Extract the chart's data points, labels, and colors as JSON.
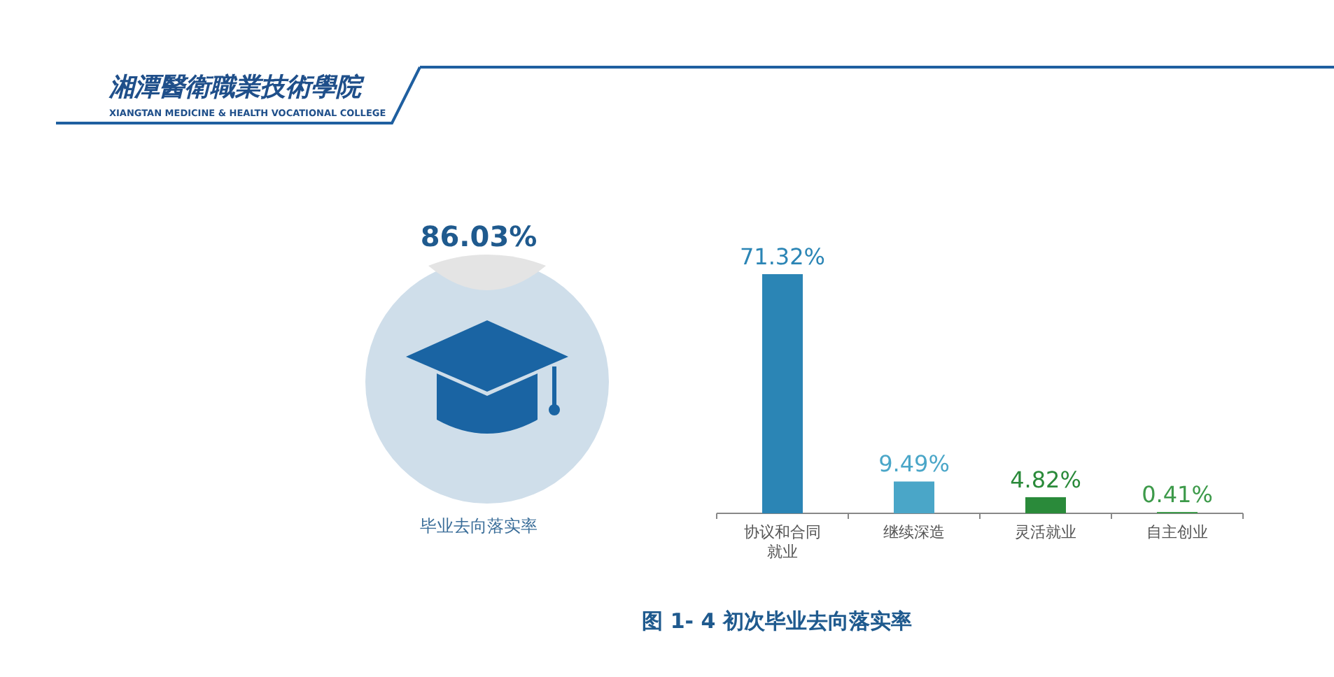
{
  "chart_data": [
    {
      "type": "other",
      "annotations": [
        "湘潭醫衛職業技術學院",
        "XIANGTAN MEDICINE & HEALTH VOCATIONAL COLLEGE"
      ]
    },
    {
      "type": "other",
      "title": "86.03%",
      "annotations": [
        "毕业去向落实率"
      ]
    },
    {
      "type": "bar",
      "categories": [
        "协议和合同就业",
        "继续深造",
        "灵活就业",
        "自主创业"
      ],
      "values": [
        71.32,
        9.49,
        4.82,
        0.41
      ],
      "value_labels": [
        "71.32%",
        "9.49%",
        "4.82%",
        "0.41%"
      ],
      "colors": [
        "#2b85b5",
        "#4aa6c8",
        "#2a8a3a",
        "#3d9a4a"
      ],
      "annotations": [
        "图 1- 4  初次毕业去向落实率"
      ]
    }
  ]
}
